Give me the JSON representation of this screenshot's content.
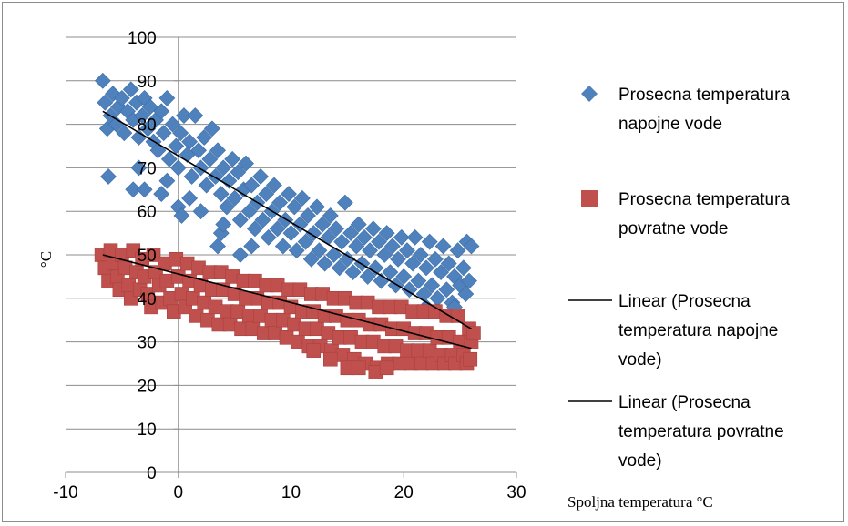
{
  "chart_data": {
    "type": "scatter",
    "title": "",
    "xlabel": "Spoljna temperatura °C",
    "ylabel": "°C",
    "xlim": [
      -10,
      30
    ],
    "ylim": [
      0,
      100
    ],
    "x_ticks": [
      "-10",
      "0",
      "10",
      "20",
      "30"
    ],
    "y_ticks": [
      "0",
      "10",
      "20",
      "30",
      "40",
      "50",
      "60",
      "70",
      "80",
      "90",
      "100"
    ],
    "grid": "horizontal",
    "legend_position": "right",
    "series": [
      {
        "name": "Prosecna temperatura napojne vode",
        "marker": "diamond",
        "color": "#4f81bd",
        "points": [
          [
            -6.7,
            90
          ],
          [
            -6.5,
            85
          ],
          [
            -6.3,
            79
          ],
          [
            -6,
            82
          ],
          [
            -5.8,
            87
          ],
          [
            -5.5,
            80
          ],
          [
            -5.3,
            84
          ],
          [
            -5,
            86
          ],
          [
            -4.8,
            78
          ],
          [
            -4.5,
            83
          ],
          [
            -4.2,
            88
          ],
          [
            -4,
            81
          ],
          [
            -3.7,
            85
          ],
          [
            -3.5,
            77
          ],
          [
            -3.2,
            82
          ],
          [
            -3,
            86
          ],
          [
            -2.7,
            79
          ],
          [
            -2.5,
            84
          ],
          [
            -2.2,
            76
          ],
          [
            -2,
            81
          ],
          [
            -1.8,
            74
          ],
          [
            -1.5,
            83
          ],
          [
            -1.3,
            78
          ],
          [
            -1,
            86
          ],
          [
            -0.8,
            72
          ],
          [
            -0.5,
            80
          ],
          [
            -0.2,
            75
          ],
          [
            0,
            70
          ],
          [
            0.2,
            78
          ],
          [
            0.5,
            82
          ],
          [
            0.8,
            73
          ],
          [
            1,
            76
          ],
          [
            1.2,
            68
          ],
          [
            1.5,
            82
          ],
          [
            1.8,
            74
          ],
          [
            2,
            70
          ],
          [
            2.3,
            77
          ],
          [
            2.5,
            66
          ],
          [
            2.8,
            72
          ],
          [
            3,
            79
          ],
          [
            3.3,
            68
          ],
          [
            3.5,
            74
          ],
          [
            3.8,
            64
          ],
          [
            4,
            70
          ],
          [
            4.3,
            61
          ],
          [
            4.5,
            67
          ],
          [
            4.8,
            72
          ],
          [
            5,
            63
          ],
          [
            5.3,
            69
          ],
          [
            5.5,
            58
          ],
          [
            5.8,
            65
          ],
          [
            6,
            71
          ],
          [
            6.3,
            60
          ],
          [
            6.5,
            66
          ],
          [
            6.8,
            56
          ],
          [
            7,
            62
          ],
          [
            7.3,
            68
          ],
          [
            7.5,
            58
          ],
          [
            7.8,
            64
          ],
          [
            8,
            54
          ],
          [
            8.3,
            60
          ],
          [
            8.5,
            66
          ],
          [
            8.8,
            56
          ],
          [
            9,
            62
          ],
          [
            9.3,
            52
          ],
          [
            9.5,
            58
          ],
          [
            9.8,
            64
          ],
          [
            10,
            55
          ],
          [
            10.3,
            61
          ],
          [
            10.5,
            51
          ],
          [
            10.8,
            57
          ],
          [
            11,
            63
          ],
          [
            11.3,
            53
          ],
          [
            11.5,
            59
          ],
          [
            11.8,
            49
          ],
          [
            12,
            55
          ],
          [
            12.3,
            61
          ],
          [
            12.5,
            51
          ],
          [
            12.8,
            57
          ],
          [
            13,
            48
          ],
          [
            13.3,
            54
          ],
          [
            13.5,
            59
          ],
          [
            13.8,
            50
          ],
          [
            14,
            56
          ],
          [
            14.3,
            47
          ],
          [
            14.5,
            53
          ],
          [
            14.8,
            62
          ],
          [
            15,
            49
          ],
          [
            15.3,
            55
          ],
          [
            15.5,
            46
          ],
          [
            15.8,
            52
          ],
          [
            16,
            57
          ],
          [
            16.3,
            48
          ],
          [
            16.5,
            54
          ],
          [
            16.8,
            45
          ],
          [
            17,
            51
          ],
          [
            17.3,
            56
          ],
          [
            17.5,
            47
          ],
          [
            17.8,
            53
          ],
          [
            18,
            44
          ],
          [
            18.3,
            50
          ],
          [
            18.5,
            55
          ],
          [
            18.8,
            46
          ],
          [
            19,
            52
          ],
          [
            19.3,
            43
          ],
          [
            19.5,
            49
          ],
          [
            19.8,
            54
          ],
          [
            20,
            45
          ],
          [
            20.3,
            51
          ],
          [
            20.5,
            42
          ],
          [
            20.8,
            48
          ],
          [
            21,
            54
          ],
          [
            21.3,
            44
          ],
          [
            21.5,
            50
          ],
          [
            21.8,
            41
          ],
          [
            22,
            47
          ],
          [
            22.3,
            53
          ],
          [
            22.5,
            43
          ],
          [
            22.8,
            49
          ],
          [
            23,
            40
          ],
          [
            23.3,
            46
          ],
          [
            23.5,
            52
          ],
          [
            23.8,
            42
          ],
          [
            24,
            48
          ],
          [
            24.3,
            39
          ],
          [
            24.5,
            45
          ],
          [
            24.8,
            51
          ],
          [
            25,
            43
          ],
          [
            25.3,
            47
          ],
          [
            25.6,
            53
          ],
          [
            -6.2,
            68
          ],
          [
            -4,
            65
          ],
          [
            -3.5,
            70
          ],
          [
            -3,
            65
          ],
          [
            -1.5,
            64
          ],
          [
            -1,
            67
          ],
          [
            0,
            61
          ],
          [
            0.3,
            59
          ],
          [
            1,
            63
          ],
          [
            3.5,
            52
          ],
          [
            3.8,
            55
          ],
          [
            5.5,
            50
          ],
          [
            6.5,
            52
          ],
          [
            4,
            57
          ],
          [
            2,
            60
          ],
          [
            25.8,
            44
          ],
          [
            26,
            52
          ],
          [
            25.5,
            41
          ],
          [
            24.5,
            38
          ],
          [
            22,
            38
          ]
        ]
      },
      {
        "name": "Prosecna temperatura povratne vode",
        "marker": "square",
        "color": "#c0504d",
        "points": [
          [
            -6.8,
            50
          ],
          [
            -6.5,
            47
          ],
          [
            -6.2,
            44
          ],
          [
            -6,
            51
          ],
          [
            -5.7,
            48
          ],
          [
            -5.4,
            45
          ],
          [
            -5.2,
            42
          ],
          [
            -5,
            50
          ],
          [
            -4.7,
            47
          ],
          [
            -4.4,
            43
          ],
          [
            -4.2,
            40
          ],
          [
            -4,
            51
          ],
          [
            -3.7,
            46
          ],
          [
            -3.4,
            42
          ],
          [
            -3.2,
            49
          ],
          [
            -3,
            45
          ],
          [
            -2.7,
            41
          ],
          [
            -2.4,
            38
          ],
          [
            -2.2,
            50
          ],
          [
            -2,
            46
          ],
          [
            -1.7,
            43
          ],
          [
            -1.4,
            39
          ],
          [
            -1.2,
            48
          ],
          [
            -1,
            44
          ],
          [
            -0.7,
            40
          ],
          [
            -0.4,
            37
          ],
          [
            -0.2,
            49
          ],
          [
            0,
            45
          ],
          [
            0.3,
            41
          ],
          [
            0.6,
            38
          ],
          [
            0.8,
            48
          ],
          [
            1,
            44
          ],
          [
            1.3,
            40
          ],
          [
            1.6,
            36
          ],
          [
            1.8,
            47
          ],
          [
            2,
            43
          ],
          [
            2.3,
            39
          ],
          [
            2.6,
            35
          ],
          [
            2.8,
            46
          ],
          [
            3,
            42
          ],
          [
            3.3,
            38
          ],
          [
            3.6,
            34
          ],
          [
            3.8,
            46
          ],
          [
            4,
            42
          ],
          [
            4.3,
            37
          ],
          [
            4.6,
            34
          ],
          [
            4.8,
            45
          ],
          [
            5,
            41
          ],
          [
            5.3,
            37
          ],
          [
            5.6,
            33
          ],
          [
            5.8,
            44
          ],
          [
            6,
            40
          ],
          [
            6.3,
            36
          ],
          [
            6.6,
            33
          ],
          [
            6.8,
            44
          ],
          [
            7,
            40
          ],
          [
            7.3,
            36
          ],
          [
            7.6,
            32
          ],
          [
            7.8,
            43
          ],
          [
            8,
            39
          ],
          [
            8.3,
            35
          ],
          [
            8.6,
            32
          ],
          [
            8.8,
            43
          ],
          [
            9,
            39
          ],
          [
            9.3,
            35
          ],
          [
            9.6,
            31
          ],
          [
            9.8,
            42
          ],
          [
            10,
            38
          ],
          [
            10.3,
            34
          ],
          [
            10.6,
            30
          ],
          [
            10.8,
            42
          ],
          [
            11,
            37
          ],
          [
            11.3,
            33
          ],
          [
            11.6,
            29
          ],
          [
            11.8,
            41
          ],
          [
            12,
            37
          ],
          [
            12.3,
            33
          ],
          [
            12.6,
            29
          ],
          [
            12.8,
            41
          ],
          [
            13,
            36
          ],
          [
            13.3,
            32
          ],
          [
            13.6,
            28
          ],
          [
            13.8,
            40
          ],
          [
            14,
            36
          ],
          [
            14.3,
            31
          ],
          [
            14.6,
            27
          ],
          [
            14.8,
            40
          ],
          [
            15,
            35
          ],
          [
            15.3,
            31
          ],
          [
            15.6,
            26
          ],
          [
            15.8,
            39
          ],
          [
            16,
            35
          ],
          [
            16.3,
            30
          ],
          [
            16.6,
            25
          ],
          [
            16.8,
            39
          ],
          [
            17,
            34
          ],
          [
            17.3,
            30
          ],
          [
            17.6,
            24
          ],
          [
            17.8,
            38
          ],
          [
            18,
            34
          ],
          [
            18.3,
            29
          ],
          [
            18.6,
            25
          ],
          [
            18.8,
            38
          ],
          [
            19,
            33
          ],
          [
            19.3,
            29
          ],
          [
            19.6,
            25
          ],
          [
            19.8,
            38
          ],
          [
            20,
            33
          ],
          [
            20.3,
            28
          ],
          [
            20.6,
            25
          ],
          [
            20.8,
            37
          ],
          [
            21,
            32
          ],
          [
            21.3,
            28
          ],
          [
            21.6,
            25
          ],
          [
            21.8,
            37
          ],
          [
            22,
            32
          ],
          [
            22.3,
            28
          ],
          [
            22.6,
            25
          ],
          [
            22.8,
            37
          ],
          [
            23,
            31
          ],
          [
            23.3,
            27
          ],
          [
            23.6,
            25
          ],
          [
            23.8,
            36
          ],
          [
            24,
            31
          ],
          [
            24.3,
            27
          ],
          [
            24.6,
            25
          ],
          [
            24.8,
            36
          ],
          [
            25,
            30
          ],
          [
            25.3,
            27
          ],
          [
            25.6,
            25
          ],
          [
            25.8,
            33
          ],
          [
            26,
            30
          ],
          [
            26.2,
            32
          ],
          [
            25.9,
            26
          ],
          [
            15,
            24
          ],
          [
            16,
            24
          ],
          [
            17.5,
            23
          ],
          [
            18.5,
            24
          ],
          [
            13.5,
            26
          ],
          [
            12,
            28
          ]
        ]
      }
    ],
    "trendlines": [
      {
        "name": "Linear (Prosecna temperatura napojne vode)",
        "x": [
          -6.7,
          26
        ],
        "y": [
          83,
          33
        ],
        "color": "#000000"
      },
      {
        "name": "Linear (Prosecna temperatura povratne vode)",
        "x": [
          -6.7,
          26
        ],
        "y": [
          50,
          28.5
        ],
        "color": "#000000"
      }
    ]
  },
  "legend": [
    {
      "kind": "diamond",
      "color": "#4f81bd",
      "lines": [
        "Prosecna temperatura",
        "napojne vode"
      ]
    },
    {
      "kind": "square",
      "color": "#c0504d",
      "lines": [
        "Prosecna temperatura",
        "povratne vode"
      ]
    },
    {
      "kind": "line",
      "color": "#000000",
      "lines": [
        "Linear (Prosecna",
        "temperatura napojne",
        "vode)"
      ]
    },
    {
      "kind": "line",
      "color": "#000000",
      "lines": [
        "Linear (Prosecna",
        "temperatura povratne",
        "vode)"
      ]
    }
  ]
}
